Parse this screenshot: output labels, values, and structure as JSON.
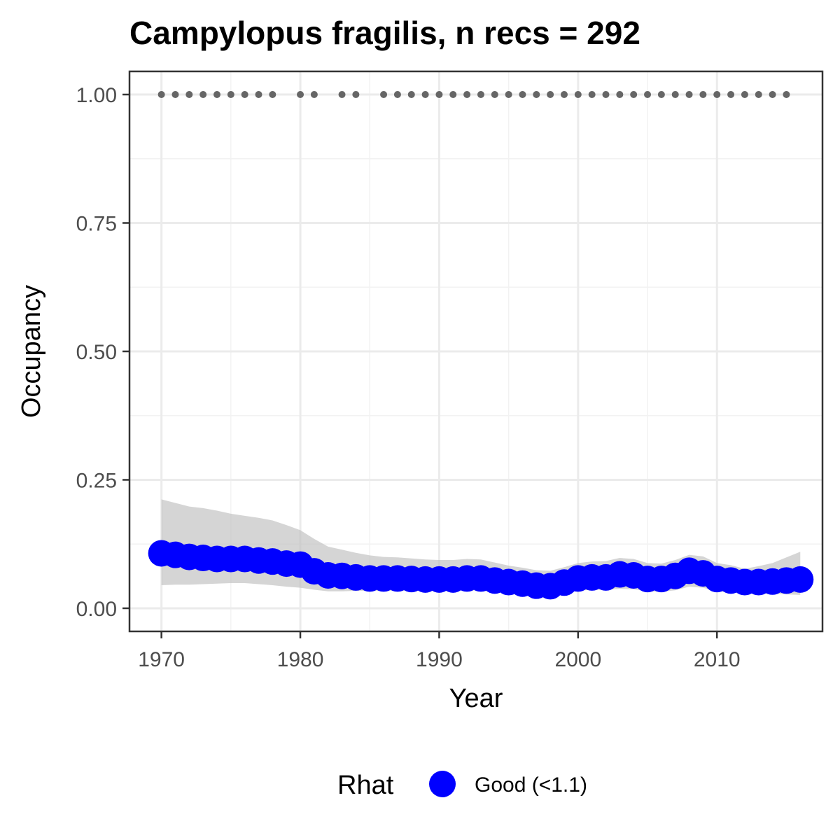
{
  "chart_data": {
    "type": "line",
    "title": "Campylopus fragilis, n recs = 292",
    "xlabel": "Year",
    "ylabel": "Occupancy",
    "xlim": [
      1967.7,
      2017.6
    ],
    "ylim": [
      -0.045,
      1.045
    ],
    "x_ticks": [
      1970,
      1980,
      1990,
      2000,
      2010
    ],
    "x_tick_labels": [
      "1970",
      "1980",
      "1990",
      "2000",
      "2010"
    ],
    "y_ticks": [
      0,
      0.25,
      0.5,
      0.75,
      1.0
    ],
    "y_tick_labels": [
      "0.00",
      "0.25",
      "0.50",
      "0.75",
      "1.00"
    ],
    "grid": true,
    "legend": {
      "title": "Rhat",
      "position": "bottom",
      "entries": [
        {
          "label": "Good (<1.1)",
          "color": "#0000ff"
        }
      ]
    },
    "colors": {
      "point": "#0000ff",
      "ribbon": "#bebebe",
      "record_dots": "#666666"
    },
    "series": [
      {
        "x": [
          1970,
          1971,
          1972,
          1973,
          1974,
          1975,
          1976,
          1977,
          1978,
          1979,
          1980,
          1981,
          1982,
          1983,
          1984,
          1985,
          1986,
          1987,
          1988,
          1989,
          1990,
          1991,
          1992,
          1993,
          1994,
          1995,
          1996,
          1997,
          1998,
          1999,
          2000,
          2001,
          2002,
          2003,
          2004,
          2005,
          2006,
          2007,
          2008,
          2009,
          2010,
          2011,
          2012,
          2013,
          2014,
          2015,
          2016
        ],
        "y": [
          0.107,
          0.104,
          0.1,
          0.098,
          0.096,
          0.096,
          0.096,
          0.093,
          0.091,
          0.087,
          0.085,
          0.072,
          0.064,
          0.063,
          0.06,
          0.058,
          0.058,
          0.058,
          0.057,
          0.056,
          0.056,
          0.056,
          0.058,
          0.058,
          0.054,
          0.051,
          0.048,
          0.044,
          0.043,
          0.05,
          0.058,
          0.06,
          0.06,
          0.066,
          0.064,
          0.057,
          0.057,
          0.063,
          0.073,
          0.068,
          0.057,
          0.054,
          0.051,
          0.051,
          0.052,
          0.054,
          0.056
        ],
        "lower": [
          0.045,
          0.046,
          0.046,
          0.047,
          0.048,
          0.049,
          0.049,
          0.047,
          0.045,
          0.042,
          0.04,
          0.036,
          0.033,
          0.033,
          0.034,
          0.034,
          0.034,
          0.034,
          0.034,
          0.034,
          0.034,
          0.034,
          0.035,
          0.034,
          0.032,
          0.03,
          0.029,
          0.026,
          0.025,
          0.028,
          0.034,
          0.036,
          0.036,
          0.038,
          0.037,
          0.033,
          0.032,
          0.035,
          0.042,
          0.04,
          0.033,
          0.031,
          0.029,
          0.028,
          0.028,
          0.027,
          0.026
        ],
        "upper": [
          0.212,
          0.205,
          0.198,
          0.195,
          0.19,
          0.184,
          0.18,
          0.176,
          0.171,
          0.162,
          0.152,
          0.135,
          0.12,
          0.114,
          0.108,
          0.103,
          0.1,
          0.099,
          0.097,
          0.095,
          0.094,
          0.094,
          0.096,
          0.095,
          0.089,
          0.083,
          0.079,
          0.074,
          0.073,
          0.08,
          0.088,
          0.091,
          0.092,
          0.098,
          0.096,
          0.088,
          0.087,
          0.094,
          0.104,
          0.101,
          0.088,
          0.084,
          0.077,
          0.082,
          0.088,
          0.099,
          0.11
        ]
      }
    ],
    "record_years": [
      1970,
      1971,
      1972,
      1973,
      1974,
      1975,
      1976,
      1977,
      1978,
      1980,
      1981,
      1983,
      1984,
      1986,
      1987,
      1988,
      1989,
      1990,
      1991,
      1992,
      1993,
      1994,
      1995,
      1996,
      1997,
      1998,
      1999,
      2000,
      2001,
      2002,
      2003,
      2004,
      2005,
      2006,
      2007,
      2008,
      2009,
      2010,
      2011,
      2012,
      2013,
      2014,
      2015
    ],
    "record_y": 1.0
  }
}
